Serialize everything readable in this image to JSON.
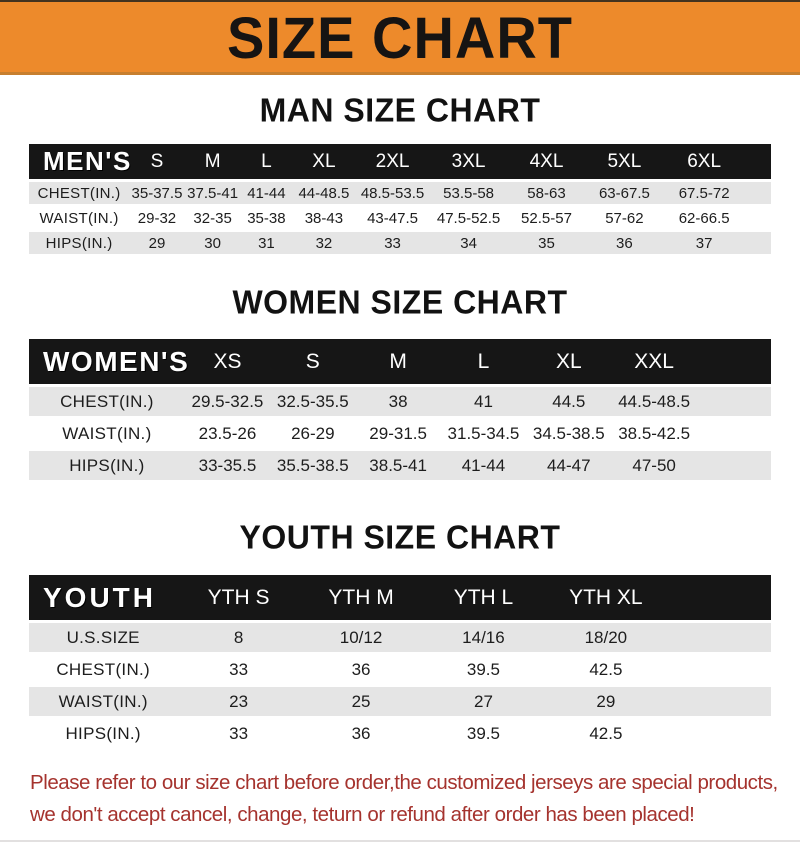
{
  "banner": {
    "title": "SIZE CHART",
    "bg_color": "#ED8A2B",
    "text_color": "#161413"
  },
  "sections": [
    {
      "title": "MAN SIZE CHART",
      "header_label": "MEN'S",
      "columns": [
        "S",
        "M",
        "L",
        "XL",
        "2XL",
        "3XL",
        "4XL",
        "5XL",
        "6XL"
      ],
      "rows": [
        {
          "label": "CHEST(IN.)",
          "values": [
            "35-37.5",
            "37.5-41",
            "41-44",
            "44-48.5",
            "48.5-53.5",
            "53.5-58",
            "58-63",
            "63-67.5",
            "67.5-72"
          ]
        },
        {
          "label": "WAIST(IN.)",
          "values": [
            "29-32",
            "32-35",
            "35-38",
            "38-43",
            "43-47.5",
            "47.5-52.5",
            "52.5-57",
            "57-62",
            "62-66.5"
          ]
        },
        {
          "label": "HIPS(IN.)",
          "values": [
            "29",
            "30",
            "31",
            "32",
            "33",
            "34",
            "35",
            "36",
            "37"
          ]
        }
      ]
    },
    {
      "title": "WOMEN SIZE CHART",
      "header_label": "WOMEN'S",
      "columns": [
        "XS",
        "S",
        "M",
        "L",
        "XL",
        "XXL"
      ],
      "rows": [
        {
          "label": "CHEST(IN.)",
          "values": [
            "29.5-32.5",
            "32.5-35.5",
            "38",
            "41",
            "44.5",
            "44.5-48.5"
          ]
        },
        {
          "label": "WAIST(IN.)",
          "values": [
            "23.5-26",
            "26-29",
            "29-31.5",
            "31.5-34.5",
            "34.5-38.5",
            "38.5-42.5"
          ]
        },
        {
          "label": "HIPS(IN.)",
          "values": [
            "33-35.5",
            "35.5-38.5",
            "38.5-41",
            "41-44",
            "44-47",
            "47-50"
          ]
        }
      ]
    },
    {
      "title": "YOUTH SIZE CHART",
      "header_label": "YOUTH",
      "columns": [
        "YTH S",
        "YTH M",
        "YTH L",
        "YTH XL"
      ],
      "rows": [
        {
          "label": "U.S.SIZE",
          "values": [
            "8",
            "10/12",
            "14/16",
            "18/20"
          ]
        },
        {
          "label": "CHEST(IN.)",
          "values": [
            "33",
            "36",
            "39.5",
            "42.5"
          ]
        },
        {
          "label": "WAIST(IN.)",
          "values": [
            "23",
            "25",
            "27",
            "29"
          ]
        },
        {
          "label": "HIPS(IN.)",
          "values": [
            "33",
            "36",
            "39.5",
            "42.5"
          ]
        }
      ]
    }
  ],
  "footer": {
    "line1": "Please refer to our size chart before order,the customized jerseys are special products,",
    "line2": "we don't accept cancel, change, teturn or refund after order has been placed!",
    "text_color": "#A5332E"
  },
  "colors": {
    "banner_orange": "#ED8A2B",
    "table_header_black": "#161616",
    "row_gray": "#E5E5E5",
    "row_white": "#FFFFFF",
    "notice_red": "#A5332E"
  }
}
